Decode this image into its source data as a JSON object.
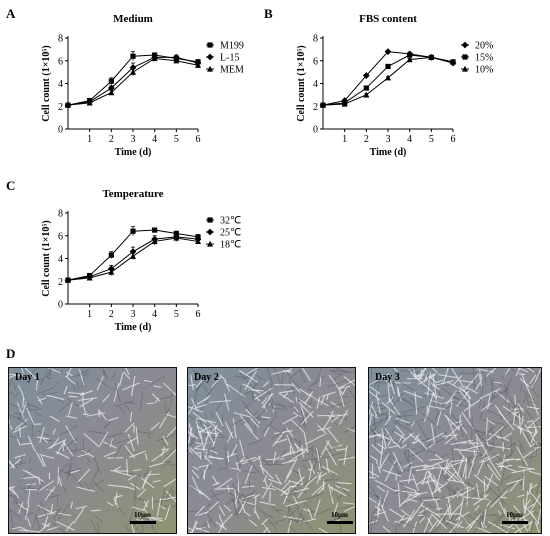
{
  "panels": {
    "a": "A",
    "b": "B",
    "c": "C",
    "d": "D"
  },
  "chart_data": [
    {
      "type": "line",
      "title": "Medium",
      "xlabel": "Time (d)",
      "ylabel": "Cell count (1×10⁵)",
      "x": [
        0,
        1,
        2,
        3,
        4,
        5,
        6
      ],
      "xticks": [
        "1",
        "2",
        "3",
        "4",
        "5",
        "6"
      ],
      "yticks": [
        "0",
        "2",
        "4",
        "6",
        "8"
      ],
      "xlim": [
        0,
        6
      ],
      "ylim": [
        0,
        8
      ],
      "legend_position": "top-right",
      "series": [
        {
          "name": "M199",
          "marker": "square",
          "values": [
            2.1,
            2.5,
            4.2,
            6.4,
            6.5,
            6.2,
            5.9
          ],
          "errors": [
            0,
            0.1,
            0.3,
            0.4,
            0.15,
            0.2,
            0.2
          ]
        },
        {
          "name": "L-15",
          "marker": "diamond",
          "values": [
            2.1,
            2.4,
            3.6,
            5.4,
            6.3,
            6.3,
            5.8
          ],
          "errors": [
            0,
            0.1,
            0.2,
            0.4,
            0.15,
            0.2,
            0.2
          ]
        },
        {
          "name": "MEM",
          "marker": "triangle",
          "values": [
            2.1,
            2.3,
            3.2,
            5.0,
            6.2,
            6.0,
            5.6
          ],
          "errors": [
            0,
            0.1,
            0.2,
            0.3,
            0.15,
            0.2,
            0.2
          ]
        }
      ]
    },
    {
      "type": "line",
      "title": "FBS content",
      "xlabel": "Time (d)",
      "ylabel": "Cell count (1×10⁵)",
      "x": [
        0,
        1,
        2,
        3,
        4,
        5,
        6
      ],
      "xticks": [
        "1",
        "2",
        "3",
        "4",
        "5",
        "6"
      ],
      "yticks": [
        "0",
        "2",
        "4",
        "6",
        "8"
      ],
      "xlim": [
        0,
        6
      ],
      "ylim": [
        0,
        8
      ],
      "legend_position": "top-right",
      "series": [
        {
          "name": "20%",
          "marker": "diamond",
          "values": [
            2.1,
            2.5,
            4.7,
            6.8,
            6.6,
            6.3,
            5.8
          ],
          "errors": [
            0,
            0.05,
            0.1,
            0.1,
            0.1,
            0.1,
            0.1
          ]
        },
        {
          "name": "15%",
          "marker": "square",
          "values": [
            2.1,
            2.3,
            3.6,
            5.5,
            6.5,
            6.3,
            5.9
          ],
          "errors": [
            0,
            0.05,
            0.1,
            0.1,
            0.1,
            0.1,
            0.1
          ]
        },
        {
          "name": "10%",
          "marker": "triangle",
          "values": [
            2.1,
            2.2,
            3.0,
            4.5,
            6.1,
            6.3,
            5.9
          ],
          "errors": [
            0,
            0.05,
            0.1,
            0.1,
            0.1,
            0.1,
            0.1
          ]
        }
      ]
    },
    {
      "type": "line",
      "title": "Temperature",
      "xlabel": "Time (d)",
      "ylabel": "Cell count (1×10⁵)",
      "x": [
        0,
        1,
        2,
        3,
        4,
        5,
        6
      ],
      "xticks": [
        "1",
        "2",
        "3",
        "4",
        "5",
        "6"
      ],
      "yticks": [
        "0",
        "2",
        "4",
        "6",
        "8"
      ],
      "xlim": [
        0,
        6
      ],
      "ylim": [
        0,
        8
      ],
      "legend_position": "top-right",
      "series": [
        {
          "name": "32℃",
          "marker": "square",
          "values": [
            2.1,
            2.5,
            4.3,
            6.4,
            6.5,
            6.2,
            5.9
          ],
          "errors": [
            0,
            0.1,
            0.3,
            0.4,
            0.1,
            0.2,
            0.2
          ]
        },
        {
          "name": "25℃",
          "marker": "diamond",
          "values": [
            2.1,
            2.4,
            3.1,
            4.6,
            5.7,
            5.9,
            5.7
          ],
          "errors": [
            0,
            0.1,
            0.3,
            0.4,
            0.3,
            0.3,
            0.2
          ]
        },
        {
          "name": "18℃",
          "marker": "triangle",
          "values": [
            2.1,
            2.3,
            2.8,
            4.2,
            5.5,
            5.8,
            5.5
          ],
          "errors": [
            0,
            0.1,
            0.3,
            0.3,
            0.3,
            0.3,
            0.2
          ]
        }
      ]
    }
  ],
  "micrographs": [
    {
      "day": "Day 1",
      "scale": "10μm",
      "density": 0.45
    },
    {
      "day": "Day 2",
      "scale": "10μm",
      "density": 0.7
    },
    {
      "day": "Day 3",
      "scale": "10μm",
      "density": 1.0
    }
  ]
}
